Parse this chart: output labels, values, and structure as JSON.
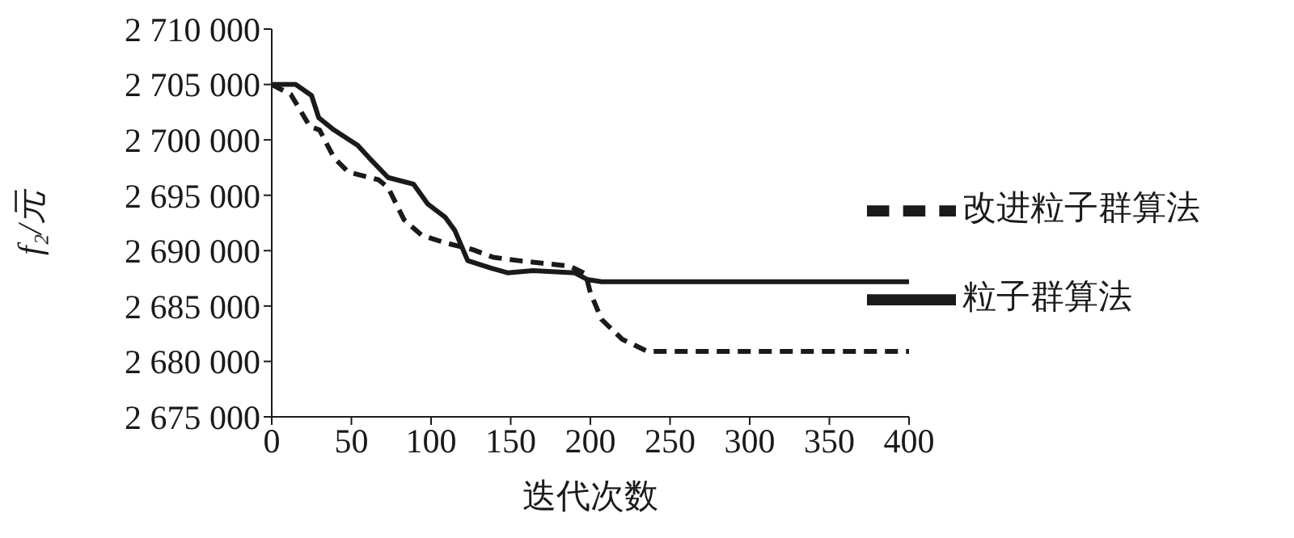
{
  "chart_data": {
    "type": "line",
    "xlabel": "迭代次数",
    "ylabel": "f₂/元",
    "xlim": [
      0,
      400
    ],
    "xticks": [
      0,
      50,
      100,
      150,
      200,
      250,
      300,
      350,
      400
    ],
    "ylim": [
      2675000,
      2710000
    ],
    "yticks": [
      {
        "value": 2675000,
        "label": "2 675 000"
      },
      {
        "value": 2680000,
        "label": "2 680 000"
      },
      {
        "value": 2685000,
        "label": "2 685 000"
      },
      {
        "value": 2690000,
        "label": "2 690 000"
      },
      {
        "value": 2695000,
        "label": "2 695 000"
      },
      {
        "value": 2700000,
        "label": "2 700 000"
      },
      {
        "value": 2705000,
        "label": "2 705 000"
      },
      {
        "value": 2710000,
        "label": "2 710 000"
      }
    ],
    "grid": false,
    "legend": "right",
    "marker": "none",
    "series": [
      {
        "name": "改进粒子群算法",
        "color": "#1a1a1a",
        "line_style": "dashed",
        "x": [
          0,
          12,
          24,
          30,
          39,
          48,
          67,
          73,
          83,
          94,
          109,
          126,
          139,
          155,
          187,
          197,
          200,
          207,
          220,
          236,
          400
        ],
        "values": [
          2705000,
          2704100,
          2701200,
          2700900,
          2698400,
          2697100,
          2696400,
          2695700,
          2692800,
          2691400,
          2690700,
          2690100,
          2689400,
          2689100,
          2688600,
          2687900,
          2686200,
          2683800,
          2682000,
          2680900,
          2680900
        ]
      },
      {
        "name": "粒子群算法",
        "color": "#1a1a1a",
        "line_style": "solid",
        "x": [
          0,
          15,
          25,
          29.5,
          39,
          54,
          61,
          73,
          89,
          98,
          109,
          115,
          123,
          138,
          148,
          164,
          190,
          198,
          207,
          400
        ],
        "values": [
          2705000,
          2705000,
          2704000,
          2702000,
          2700900,
          2699500,
          2698400,
          2696600,
          2696000,
          2694200,
          2693000,
          2691800,
          2689100,
          2688400,
          2688000,
          2688200,
          2688000,
          2687400,
          2687200,
          2687200
        ]
      }
    ]
  }
}
